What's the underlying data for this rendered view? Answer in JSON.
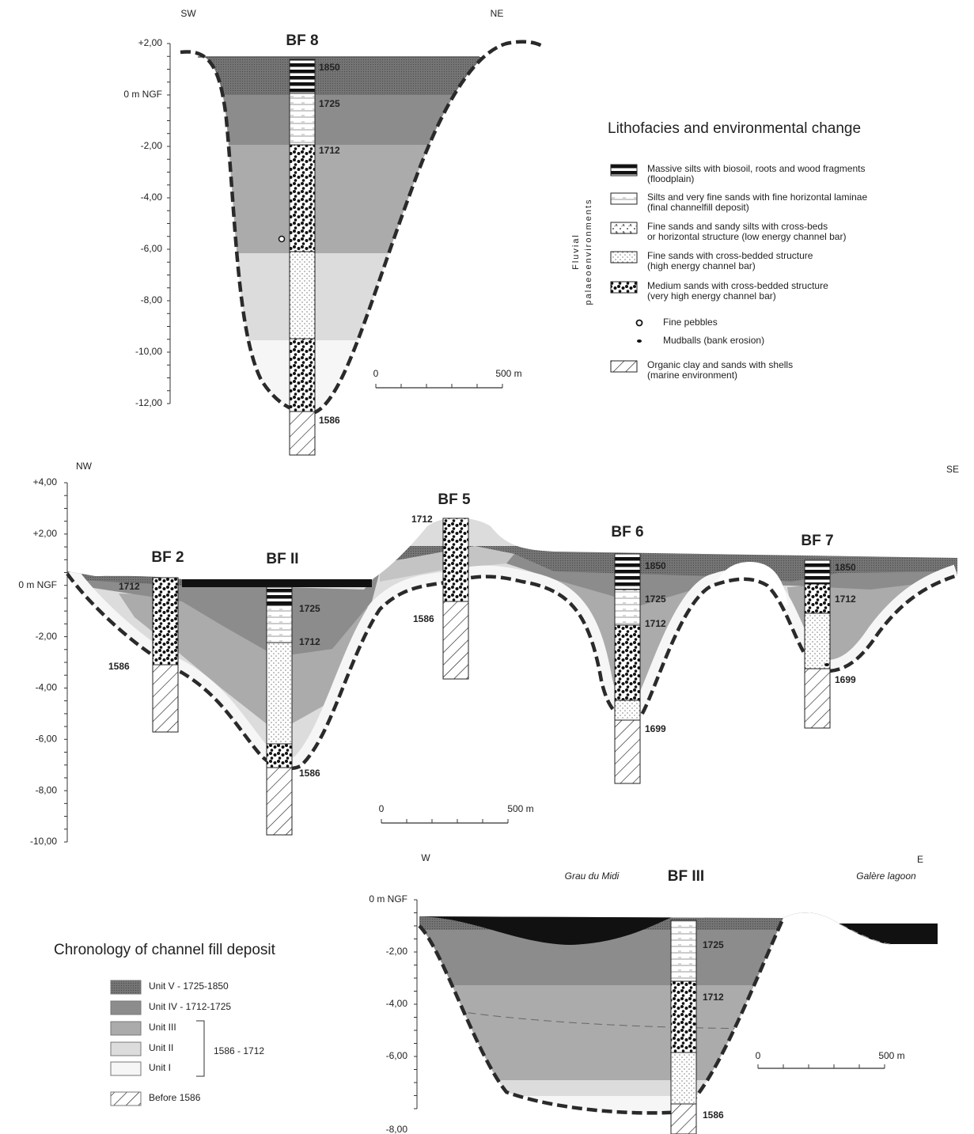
{
  "sections": [
    {
      "directions": [
        "SW",
        "NE"
      ],
      "yticks": [
        "+2,00",
        "0 m NGF",
        "-2,00",
        "-4,00",
        "-6,00",
        "-8,00",
        "-10,00",
        "-12,00"
      ],
      "boreholes": [
        {
          "name": "BF 8",
          "dates": [
            "1850",
            "1725",
            "1712",
            "1586"
          ]
        }
      ],
      "scale": [
        "0",
        "500 m"
      ]
    },
    {
      "directions": [
        "NW",
        "SE"
      ],
      "yticks": [
        "+4,00",
        "+2,00",
        "0 m NGF",
        "-2,00",
        "-4,00",
        "-6,00",
        "-8,00",
        "-10,00"
      ],
      "boreholes": [
        {
          "name": "BF 2",
          "dates": [
            "1712",
            "1586"
          ]
        },
        {
          "name": "BF II",
          "dates": [
            "1725",
            "1712",
            "1586"
          ]
        },
        {
          "name": "BF 5",
          "dates": [
            "1712",
            "1586"
          ]
        },
        {
          "name": "BF 6",
          "dates": [
            "1850",
            "1725",
            "1712",
            "1699"
          ]
        },
        {
          "name": "BF 7",
          "dates": [
            "1850",
            "1712",
            "1699"
          ]
        }
      ],
      "scale": [
        "0",
        "500 m"
      ]
    },
    {
      "directions": [
        "W",
        "E"
      ],
      "places": [
        "Grau du Midi",
        "Galère lagoon"
      ],
      "yticks": [
        "0 m NGF",
        "-2,00",
        "-4,00",
        "-6,00",
        "-8,00"
      ],
      "boreholes": [
        {
          "name": "BF III",
          "dates": [
            "1725",
            "1712",
            "1586"
          ]
        }
      ],
      "scale": [
        "0",
        "500 m"
      ]
    }
  ],
  "lithofacies_legend": {
    "title": "Lithofacies and environmental change",
    "group": [
      "Fluvial",
      "palaeoenvironments"
    ],
    "items": [
      [
        "Massive silts with biosoil, roots and wood fragments",
        "(floodplain)"
      ],
      [
        "Silts and very fine sands with fine horizontal laminae",
        "(final channelfill deposit)"
      ],
      [
        "Fine sands and sandy silts with cross-beds",
        "or horizontal structure (low energy channel bar)"
      ],
      [
        "Fine sands with cross-bedded structure",
        "(high energy channel bar)"
      ],
      [
        "Medium sands with cross-bedded structure",
        "(very high energy channel bar)"
      ],
      [
        "Fine pebbles"
      ],
      [
        "Mudballs (bank erosion)"
      ],
      [
        "Organic clay and sands with shells",
        "(marine environment)"
      ]
    ]
  },
  "chronology_legend": {
    "title": "Chronology of channel fill deposit",
    "items": [
      "Unit V - 1725-1850",
      "Unit IV - 1712-1725",
      "Unit III",
      "Unit II",
      "Unit I",
      "Before 1586"
    ],
    "bracket": "1586 - 1712"
  }
}
